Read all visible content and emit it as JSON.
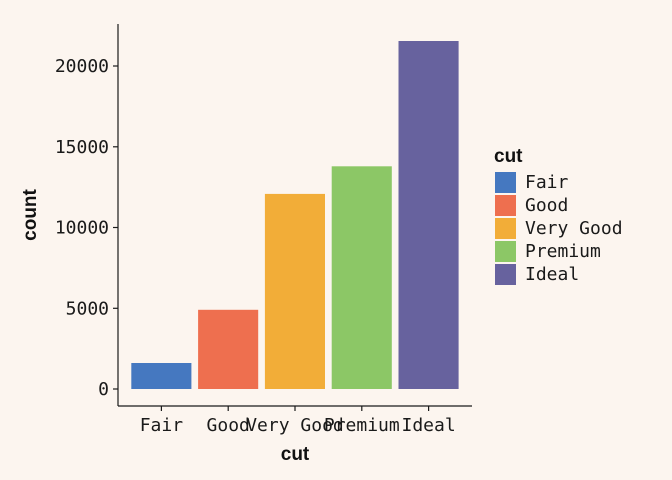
{
  "chart_data": {
    "type": "bar",
    "categories": [
      "Fair",
      "Good",
      "Very Good",
      "Premium",
      "Ideal"
    ],
    "values": [
      1610,
      4906,
      12082,
      13791,
      21551
    ],
    "colors": [
      "#4578c0",
      "#ee6f4f",
      "#f2ad38",
      "#8cc766",
      "#67629e"
    ],
    "xlabel": "cut",
    "ylabel": "count",
    "ylim": [
      0,
      22600
    ],
    "yticks": [
      0,
      5000,
      10000,
      15000,
      20000
    ],
    "grid": false,
    "legend": {
      "title": "cut",
      "position": "right",
      "entries": [
        "Fair",
        "Good",
        "Very Good",
        "Premium",
        "Ideal"
      ]
    }
  }
}
